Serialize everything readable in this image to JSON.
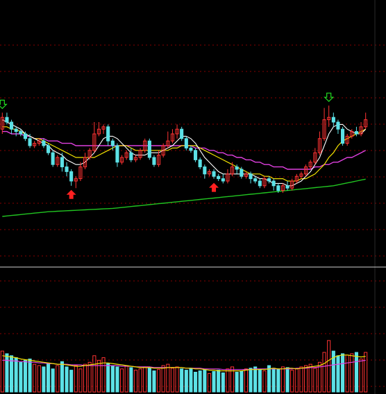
{
  "chart_data": {
    "type": "candlestick",
    "title": "",
    "grid": true,
    "colors": {
      "background": "#000000",
      "grid": "#8a0000",
      "up": "#ff3333",
      "down": "#5ce1e6",
      "ma5": "#ffffff",
      "ma10": "#f2e200",
      "ma30": "#e040e0",
      "ma250": "#21c521",
      "signal_buy": "#ff2020",
      "signal_sell": "#22dd22",
      "vol_ma1": "#f2e200",
      "vol_ma2": "#e040e0"
    },
    "price_range": [
      0,
      100
    ],
    "volume_range": [
      0,
      100
    ],
    "candles": [
      [
        57,
        62,
        55,
        64
      ],
      [
        62,
        60,
        59,
        64
      ],
      [
        60,
        57,
        55,
        61
      ],
      [
        57,
        56,
        54,
        58
      ],
      [
        56,
        55,
        54,
        57
      ],
      [
        55,
        53,
        52,
        56
      ],
      [
        53,
        50,
        49,
        55
      ],
      [
        50,
        51,
        49,
        52
      ],
      [
        51,
        52,
        50,
        53
      ],
      [
        52,
        50,
        49,
        53
      ],
      [
        50,
        47,
        46,
        51
      ],
      [
        47,
        42,
        41,
        48
      ],
      [
        42,
        45,
        41,
        46
      ],
      [
        45,
        41,
        39,
        47
      ],
      [
        41,
        39,
        37,
        43
      ],
      [
        39,
        35,
        33,
        40
      ],
      [
        35,
        36,
        32,
        37
      ],
      [
        36,
        41,
        35,
        43
      ],
      [
        41,
        45,
        40,
        47
      ],
      [
        45,
        48,
        44,
        49
      ],
      [
        48,
        55,
        47,
        60
      ],
      [
        55,
        57,
        54,
        60
      ],
      [
        57,
        58,
        55,
        59
      ],
      [
        58,
        52,
        50,
        59
      ],
      [
        52,
        50,
        48,
        53
      ],
      [
        50,
        43,
        41,
        51
      ],
      [
        43,
        45,
        42,
        46
      ],
      [
        45,
        47,
        44,
        48
      ],
      [
        47,
        44,
        43,
        49
      ],
      [
        44,
        45,
        43,
        46
      ],
      [
        45,
        48,
        44,
        49
      ],
      [
        48,
        52,
        47,
        53
      ],
      [
        52,
        45,
        44,
        53
      ],
      [
        45,
        42,
        41,
        46
      ],
      [
        42,
        46,
        41,
        48
      ],
      [
        46,
        50,
        45,
        51
      ],
      [
        50,
        52,
        49,
        56
      ],
      [
        52,
        55,
        51,
        57
      ],
      [
        55,
        57,
        53,
        59
      ],
      [
        57,
        53,
        52,
        58
      ],
      [
        53,
        49,
        48,
        54
      ],
      [
        49,
        48,
        47,
        50
      ],
      [
        48,
        44,
        43,
        49
      ],
      [
        44,
        41,
        40,
        45
      ],
      [
        41,
        38,
        36,
        42
      ],
      [
        38,
        39,
        37,
        40
      ],
      [
        39,
        37,
        36,
        40
      ],
      [
        37,
        36,
        35,
        38
      ],
      [
        36,
        35,
        34,
        38
      ],
      [
        35,
        38,
        34,
        40
      ],
      [
        38,
        41,
        37,
        43
      ],
      [
        41,
        40,
        38,
        42
      ],
      [
        40,
        37,
        36,
        41
      ],
      [
        37,
        38,
        36,
        39
      ],
      [
        38,
        36,
        34,
        39
      ],
      [
        36,
        35,
        34,
        37
      ],
      [
        35,
        33,
        32,
        36
      ],
      [
        33,
        36,
        32,
        37
      ],
      [
        36,
        35,
        34,
        37
      ],
      [
        35,
        33,
        31,
        36
      ],
      [
        33,
        31,
        30,
        34
      ],
      [
        31,
        33,
        30,
        34
      ],
      [
        33,
        32,
        31,
        35
      ],
      [
        32,
        35,
        31,
        36
      ],
      [
        35,
        37,
        34,
        38
      ],
      [
        37,
        38,
        36,
        39
      ],
      [
        38,
        41,
        37,
        42
      ],
      [
        41,
        43,
        40,
        44
      ],
      [
        43,
        47,
        42,
        49
      ],
      [
        47,
        53,
        46,
        56
      ],
      [
        53,
        61,
        52,
        66
      ],
      [
        61,
        62,
        58,
        67
      ],
      [
        62,
        60,
        58,
        64
      ],
      [
        60,
        57,
        55,
        61
      ],
      [
        57,
        51,
        50,
        58
      ],
      [
        51,
        54,
        50,
        55
      ],
      [
        54,
        56,
        53,
        57
      ],
      [
        56,
        55,
        54,
        58
      ],
      [
        55,
        58,
        54,
        60
      ],
      [
        58,
        61,
        57,
        64
      ]
    ],
    "ma5": [
      61,
      60,
      59,
      58,
      57,
      55,
      54,
      53,
      52,
      51,
      50,
      48,
      47,
      46,
      44,
      43,
      42,
      42,
      43,
      45,
      47,
      50,
      53,
      54,
      54,
      53,
      51,
      49,
      47,
      46,
      46,
      46,
      47,
      47,
      47,
      48,
      49,
      50,
      52,
      54,
      54,
      53,
      51,
      48,
      45,
      43,
      41,
      39,
      38,
      38,
      38,
      38,
      38,
      38,
      38,
      37,
      36,
      36,
      35,
      34,
      34,
      34,
      33,
      33,
      34,
      35,
      37,
      39,
      42,
      45,
      50,
      55,
      58,
      59,
      59,
      57,
      56,
      55,
      55,
      57
    ],
    "ma10": [
      58,
      58,
      57,
      57,
      56,
      55,
      54,
      53,
      53,
      52,
      51,
      50,
      49,
      48,
      47,
      46,
      45,
      45,
      45,
      45,
      45,
      46,
      47,
      48,
      49,
      50,
      50,
      50,
      49,
      48,
      48,
      48,
      48,
      48,
      48,
      48,
      48,
      49,
      49,
      50,
      50,
      50,
      50,
      49,
      48,
      47,
      46,
      45,
      44,
      43,
      42,
      41,
      40,
      39,
      38,
      38,
      38,
      37,
      37,
      36,
      36,
      36,
      35,
      35,
      35,
      36,
      36,
      37,
      38,
      40,
      42,
      45,
      47,
      50,
      52,
      53,
      54,
      55,
      56,
      57
    ],
    "ma30": [
      56,
      56,
      55,
      55,
      55,
      54,
      54,
      53,
      53,
      53,
      52,
      52,
      52,
      51,
      51,
      51,
      50,
      50,
      50,
      50,
      50,
      50,
      50,
      50,
      50,
      50,
      50,
      50,
      50,
      50,
      50,
      50,
      50,
      50,
      50,
      50,
      50,
      50,
      50,
      50,
      50,
      50,
      49,
      49,
      49,
      48,
      48,
      47,
      47,
      46,
      46,
      45,
      45,
      44,
      44,
      43,
      43,
      42,
      42,
      41,
      41,
      41,
      40,
      40,
      40,
      40,
      40,
      40,
      41,
      41,
      42,
      42,
      43,
      43,
      44,
      45,
      45,
      46,
      47,
      48
    ],
    "ma250": [
      20,
      20.2,
      20.4,
      20.6,
      20.8,
      21,
      21.2,
      21.4,
      21.6,
      21.8,
      22,
      22.1,
      22.2,
      22.3,
      22.4,
      22.5,
      22.6,
      22.7,
      22.8,
      22.9,
      23,
      23.1,
      23.2,
      23.3,
      23.4,
      23.6,
      23.8,
      24,
      24.2,
      24.4,
      24.6,
      24.8,
      25,
      25.2,
      25.4,
      25.6,
      25.8,
      26,
      26.2,
      26.4,
      26.6,
      26.8,
      27,
      27.2,
      27.4,
      27.6,
      27.8,
      28,
      28.2,
      28.4,
      28.6,
      28.8,
      29,
      29.2,
      29.4,
      29.6,
      29.8,
      30,
      30.2,
      30.4,
      30.6,
      30.8,
      31,
      31.2,
      31.4,
      31.6,
      31.8,
      32,
      32.2,
      32.4,
      32.6,
      32.8,
      33,
      33.4,
      33.8,
      34.2,
      34.6,
      35,
      35.4,
      35.8
    ],
    "signals": [
      {
        "type": "sell",
        "index": 0
      },
      {
        "type": "buy",
        "index": 15
      },
      {
        "type": "buy",
        "index": 46
      },
      {
        "type": "sell",
        "index": 71
      }
    ],
    "volume": [
      62,
      58,
      55,
      52,
      45,
      48,
      50,
      42,
      40,
      38,
      43,
      35,
      40,
      46,
      38,
      33,
      40,
      35,
      42,
      45,
      55,
      48,
      52,
      43,
      40,
      38,
      35,
      40,
      37,
      33,
      35,
      38,
      36,
      32,
      34,
      40,
      42,
      36,
      38,
      35,
      33,
      36,
      30,
      32,
      34,
      28,
      31,
      33,
      29,
      35,
      38,
      30,
      32,
      35,
      36,
      38,
      34,
      32,
      40,
      36,
      34,
      38,
      37,
      33,
      35,
      38,
      40,
      42,
      36,
      45,
      60,
      78,
      62,
      55,
      58,
      56,
      58,
      60,
      50,
      60
    ],
    "vol_ma1": [
      55,
      54,
      53,
      52,
      50,
      49,
      48,
      47,
      46,
      45,
      44,
      43,
      42,
      42,
      41,
      40,
      39,
      39,
      40,
      41,
      42,
      43,
      44,
      44,
      43,
      42,
      41,
      40,
      39,
      38,
      37,
      37,
      37,
      36,
      36,
      36,
      37,
      37,
      37,
      37,
      36,
      36,
      35,
      35,
      34,
      33,
      33,
      32,
      32,
      32,
      32,
      32,
      32,
      33,
      34,
      34,
      34,
      34,
      35,
      36,
      35,
      35,
      36,
      36,
      35,
      36,
      37,
      38,
      39,
      40,
      43,
      48,
      52,
      55,
      56,
      56,
      55,
      54,
      53,
      54
    ],
    "vol_ma2": [
      48,
      48,
      47,
      47,
      46,
      46,
      45,
      45,
      44,
      44,
      43,
      43,
      42,
      42,
      42,
      41,
      41,
      41,
      40,
      40,
      40,
      40,
      40,
      40,
      40,
      40,
      39,
      39,
      39,
      38,
      38,
      38,
      38,
      37,
      37,
      37,
      37,
      37,
      37,
      37,
      36,
      36,
      36,
      36,
      35,
      35,
      35,
      35,
      34,
      34,
      34,
      34,
      34,
      34,
      34,
      35,
      35,
      35,
      35,
      35,
      35,
      35,
      35,
      35,
      36,
      36,
      36,
      37,
      37,
      38,
      39,
      40,
      41,
      42,
      43,
      44,
      45,
      46,
      47,
      48
    ]
  }
}
